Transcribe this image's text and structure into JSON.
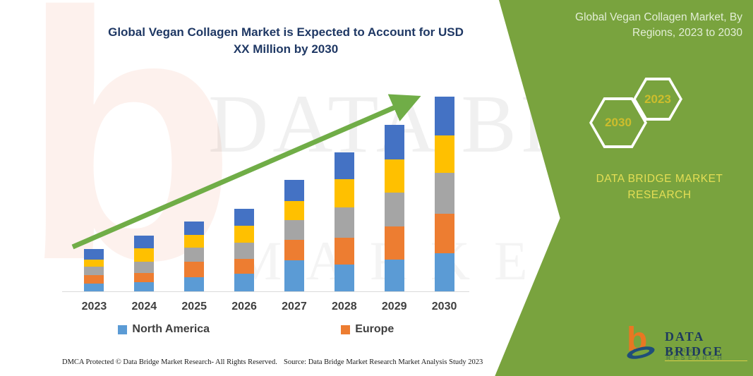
{
  "title": "Global Vegan Collagen Market is Expected to Account for USD XX Million by 2030",
  "side_panel": {
    "heading": "Global Vegan Collagen Market, By Regions, 2023 to 2030",
    "hexagons": [
      {
        "label": "2030"
      },
      {
        "label": "2023"
      }
    ],
    "brand_text": "DATA BRIDGE MARKET RESEARCH",
    "logo": {
      "name": "DATA BRIDGE",
      "subtitle": "MARKET RESEARCH"
    },
    "colors": {
      "background": "#79A33E",
      "accent_text": "#E4DE55",
      "heading_text": "#E3EED6",
      "hex_year_text": "#CDBD2C"
    }
  },
  "watermark": {
    "line1": "DATA BRIDGE",
    "line2": "MARKET RESEARCH",
    "letter": "b"
  },
  "footer": {
    "left": "DMCA Protected © Data Bridge Market Research-  All Rights Reserved.",
    "right": "Source: Data Bridge Market Research  Market Analysis Study 2023"
  },
  "chart_data": {
    "type": "bar",
    "stacked": true,
    "title": "Global Vegan Collagen Market is Expected to Account for USD XX Million by 2030",
    "xlabel": "",
    "ylabel": "",
    "y_axis_visible": false,
    "units": "relative height units (y-axis unlabeled, values shown as USD XX Million)",
    "categories": [
      "2023",
      "2024",
      "2025",
      "2026",
      "2027",
      "2028",
      "2029",
      "2030"
    ],
    "series": [
      {
        "name": "North America",
        "labeled": true,
        "color": "#5B9BD5",
        "values": [
          11,
          13,
          20,
          25,
          44,
          38,
          45,
          54
        ]
      },
      {
        "name": "Europe",
        "labeled": true,
        "color": "#ED7D31",
        "values": [
          12,
          13,
          22,
          21,
          29,
          38,
          47,
          56
        ]
      },
      {
        "name": "unlabeled-gray",
        "labeled": false,
        "color": "#A5A5A5",
        "values": [
          12,
          16,
          20,
          23,
          28,
          43,
          48,
          58
        ]
      },
      {
        "name": "unlabeled-yellow",
        "labeled": false,
        "color": "#FFC000",
        "values": [
          10,
          19,
          18,
          24,
          27,
          40,
          47,
          53
        ]
      },
      {
        "name": "unlabeled-darkblue",
        "labeled": false,
        "color": "#4472C4",
        "values": [
          15,
          18,
          19,
          24,
          30,
          38,
          49,
          55
        ]
      }
    ],
    "totals": [
      60,
      79,
      99,
      117,
      158,
      197,
      236,
      276
    ],
    "legend": [
      "North America",
      "Europe"
    ],
    "legend_position": "bottom",
    "grid": false,
    "trend_arrow": {
      "present": true,
      "color": "#70AD47",
      "direction": "up-right"
    }
  }
}
